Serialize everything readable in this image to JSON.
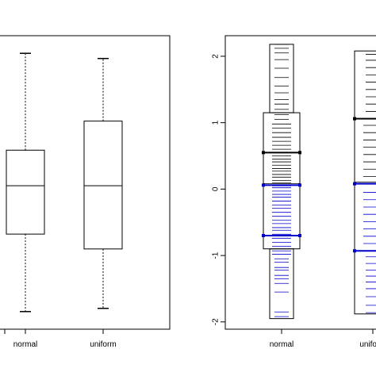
{
  "chart_data": [
    {
      "type": "box",
      "categories": [
        "normal",
        "uniform"
      ],
      "boxes": [
        {
          "name": "normal",
          "whisker_low": -1.9,
          "q1": -0.7,
          "median": 0.05,
          "q3": 0.6,
          "whisker_high": 2.1
        },
        {
          "name": "uniform",
          "whisker_low": -1.85,
          "q1": -0.93,
          "median": 0.05,
          "q3": 1.05,
          "whisker_high": 2.02
        }
      ],
      "ylim": [
        -2.05,
        2.25
      ],
      "yticks": [],
      "ytick_labels": [],
      "grid": false
    },
    {
      "type": "bean-plot",
      "categories": [
        "normal",
        "uniform"
      ],
      "ylim": [
        -2.05,
        2.25
      ],
      "yticks": [
        -2,
        -1,
        0,
        1,
        2
      ],
      "ytick_labels": [
        "-2",
        "-1",
        "0",
        "1",
        "2"
      ],
      "grid": false,
      "colors": {
        "upper": "#000000",
        "lower": "#0000cc"
      },
      "groups": [
        {
          "name": "normal",
          "q1": -0.7,
          "median": 0.06,
          "q3": 0.55,
          "outer_low": -0.9,
          "outer_high": 1.15,
          "min": -1.95,
          "max": 2.18,
          "points": [
            -1.92,
            -1.85,
            -1.55,
            -1.42,
            -1.35,
            -1.3,
            -1.22,
            -1.18,
            -1.1,
            -1.05,
            -0.98,
            -0.93,
            -0.86,
            -0.8,
            -0.74,
            -0.68,
            -0.62,
            -0.58,
            -0.52,
            -0.47,
            -0.41,
            -0.35,
            -0.29,
            -0.24,
            -0.18,
            -0.12,
            -0.08,
            -0.03,
            0.02,
            0.05,
            0.09,
            0.13,
            0.18,
            0.22,
            0.27,
            0.31,
            0.36,
            0.41,
            0.45,
            0.5,
            0.55,
            0.6,
            0.66,
            0.72,
            0.78,
            0.85,
            0.92,
            0.98,
            1.05,
            1.12,
            1.2,
            1.28,
            1.35,
            1.45,
            1.55,
            1.68,
            1.82,
            1.95,
            2.05,
            2.12,
            2.18
          ]
        },
        {
          "name": "uniform",
          "q1": -0.93,
          "median": 0.08,
          "q3": 1.06,
          "outer_low": -1.88,
          "outer_high": 2.08,
          "min": -1.88,
          "max": 2.08,
          "points": [
            -1.86,
            -1.75,
            -1.62,
            -1.5,
            -1.4,
            -1.31,
            -1.22,
            -1.12,
            -1.02,
            -0.93,
            -0.82,
            -0.71,
            -0.6,
            -0.49,
            -0.38,
            -0.27,
            -0.16,
            -0.05,
            0.08,
            0.19,
            0.3,
            0.41,
            0.52,
            0.63,
            0.74,
            0.85,
            0.96,
            1.06,
            1.17,
            1.28,
            1.39,
            1.5,
            1.61,
            1.72,
            1.83,
            1.94,
            2.03
          ]
        }
      ]
    }
  ]
}
